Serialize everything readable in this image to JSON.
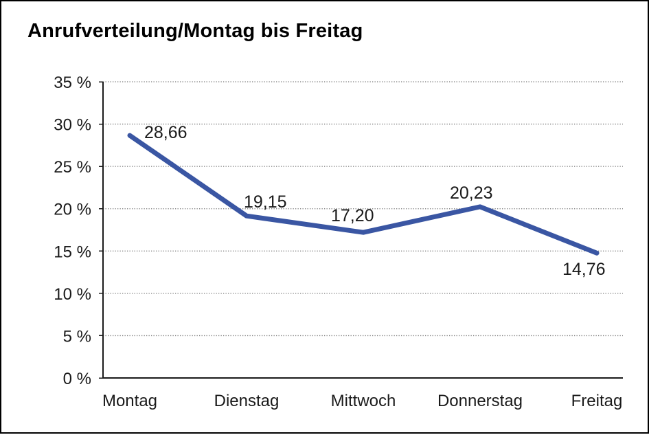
{
  "header": {
    "title": "Anrufverteilung/Montag bis Freitag"
  },
  "colors": {
    "background": "#ffffff",
    "frame_border": "#000000",
    "line": "#3a56a3",
    "grid": "#7a7a7a",
    "axis": "#1a1a1a",
    "text": "#1a1a1a"
  },
  "chart_data": {
    "type": "line",
    "title": "Anrufverteilung/Montag bis Freitag",
    "categories": [
      "Montag",
      "Dienstag",
      "Mittwoch",
      "Donnerstag",
      "Freitag"
    ],
    "series": [
      {
        "name": "Anrufverteilung",
        "values": [
          28.66,
          19.15,
          17.2,
          20.23,
          14.76
        ],
        "color": "#3a56a3"
      }
    ],
    "value_labels": [
      "28,66",
      "19,15",
      "17,20",
      "20,23",
      "14,76"
    ],
    "ytick_values": [
      0,
      5,
      10,
      15,
      20,
      25,
      30,
      35
    ],
    "ytick_labels": [
      "0 %",
      "5 %",
      "10 %",
      "15 %",
      "20 %",
      "25 %",
      "30 %",
      "35 %"
    ],
    "ylim": [
      0,
      35
    ],
    "xlabel": "",
    "ylabel": "",
    "grid": "horizontal-dotted",
    "legend": "none"
  }
}
